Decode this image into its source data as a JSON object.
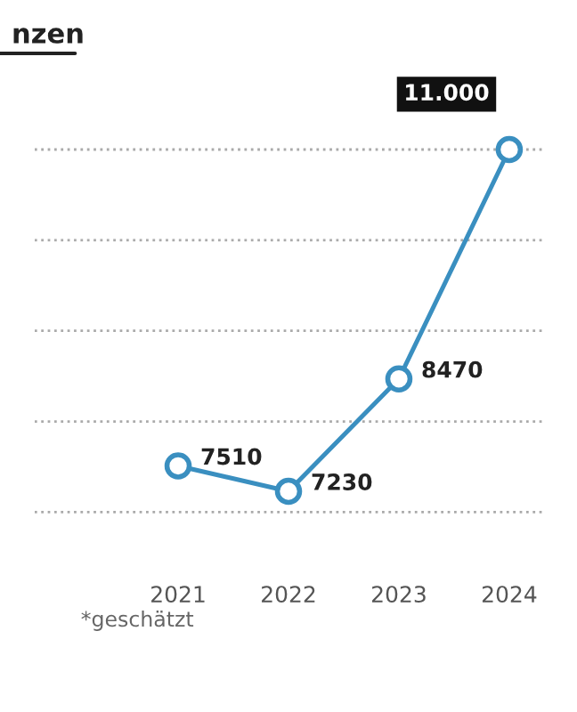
{
  "chart_data": {
    "type": "line",
    "title": "nzen",
    "categories": [
      null,
      "2021",
      "2022",
      "2023",
      "2024"
    ],
    "series": [
      {
        "color": "#3a8fc0",
        "values": [
          null,
          7510,
          7230,
          8470,
          11000
        ],
        "value_labels": [
          null,
          "7510",
          "7230",
          "8470",
          "11.000"
        ]
      }
    ],
    "tick_labels": "x",
    "grid": "y",
    "marker": "circle",
    "line_style": "solid",
    "annotations": [
      "*geschätzt"
    ]
  }
}
